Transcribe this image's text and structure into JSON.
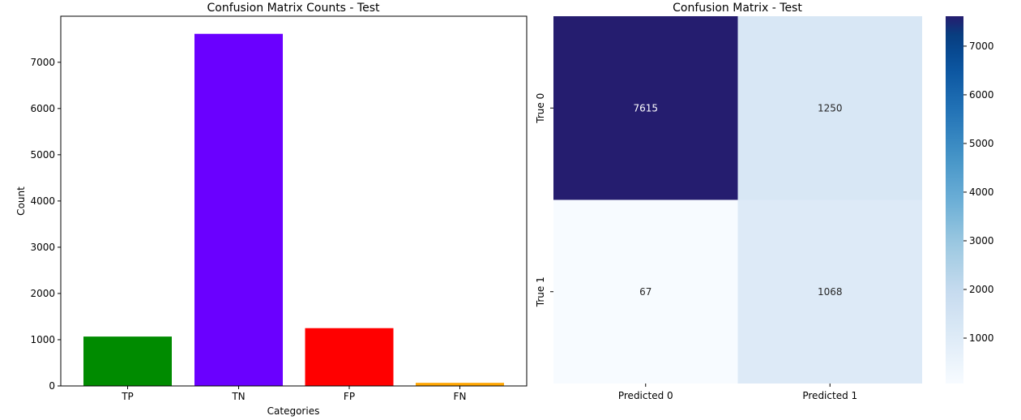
{
  "chart_data": [
    {
      "type": "bar",
      "title": "Confusion Matrix Counts - Test",
      "xlabel": "Categories",
      "ylabel": "Count",
      "categories": [
        "TP",
        "TN",
        "FP",
        "FN"
      ],
      "values": [
        1068,
        7615,
        1250,
        67
      ],
      "colors": [
        "#008b00",
        "#6a00ff",
        "#ff0000",
        "#ffa500"
      ],
      "ylim": [
        0,
        7996
      ],
      "yticks": [
        0,
        1000,
        2000,
        3000,
        4000,
        5000,
        6000,
        7000
      ],
      "grid": false
    },
    {
      "type": "heatmap",
      "title": "Confusion Matrix - Test",
      "row_labels": [
        "True 0",
        "True 1"
      ],
      "col_labels": [
        "Predicted 0",
        "Predicted 1"
      ],
      "values": [
        [
          7615,
          1250
        ],
        [
          67,
          1068
        ]
      ],
      "colormap": "Blues",
      "colorbar": {
        "min": 67,
        "max": 7615,
        "ticks": [
          1000,
          2000,
          3000,
          4000,
          5000,
          6000,
          7000
        ]
      }
    }
  ]
}
